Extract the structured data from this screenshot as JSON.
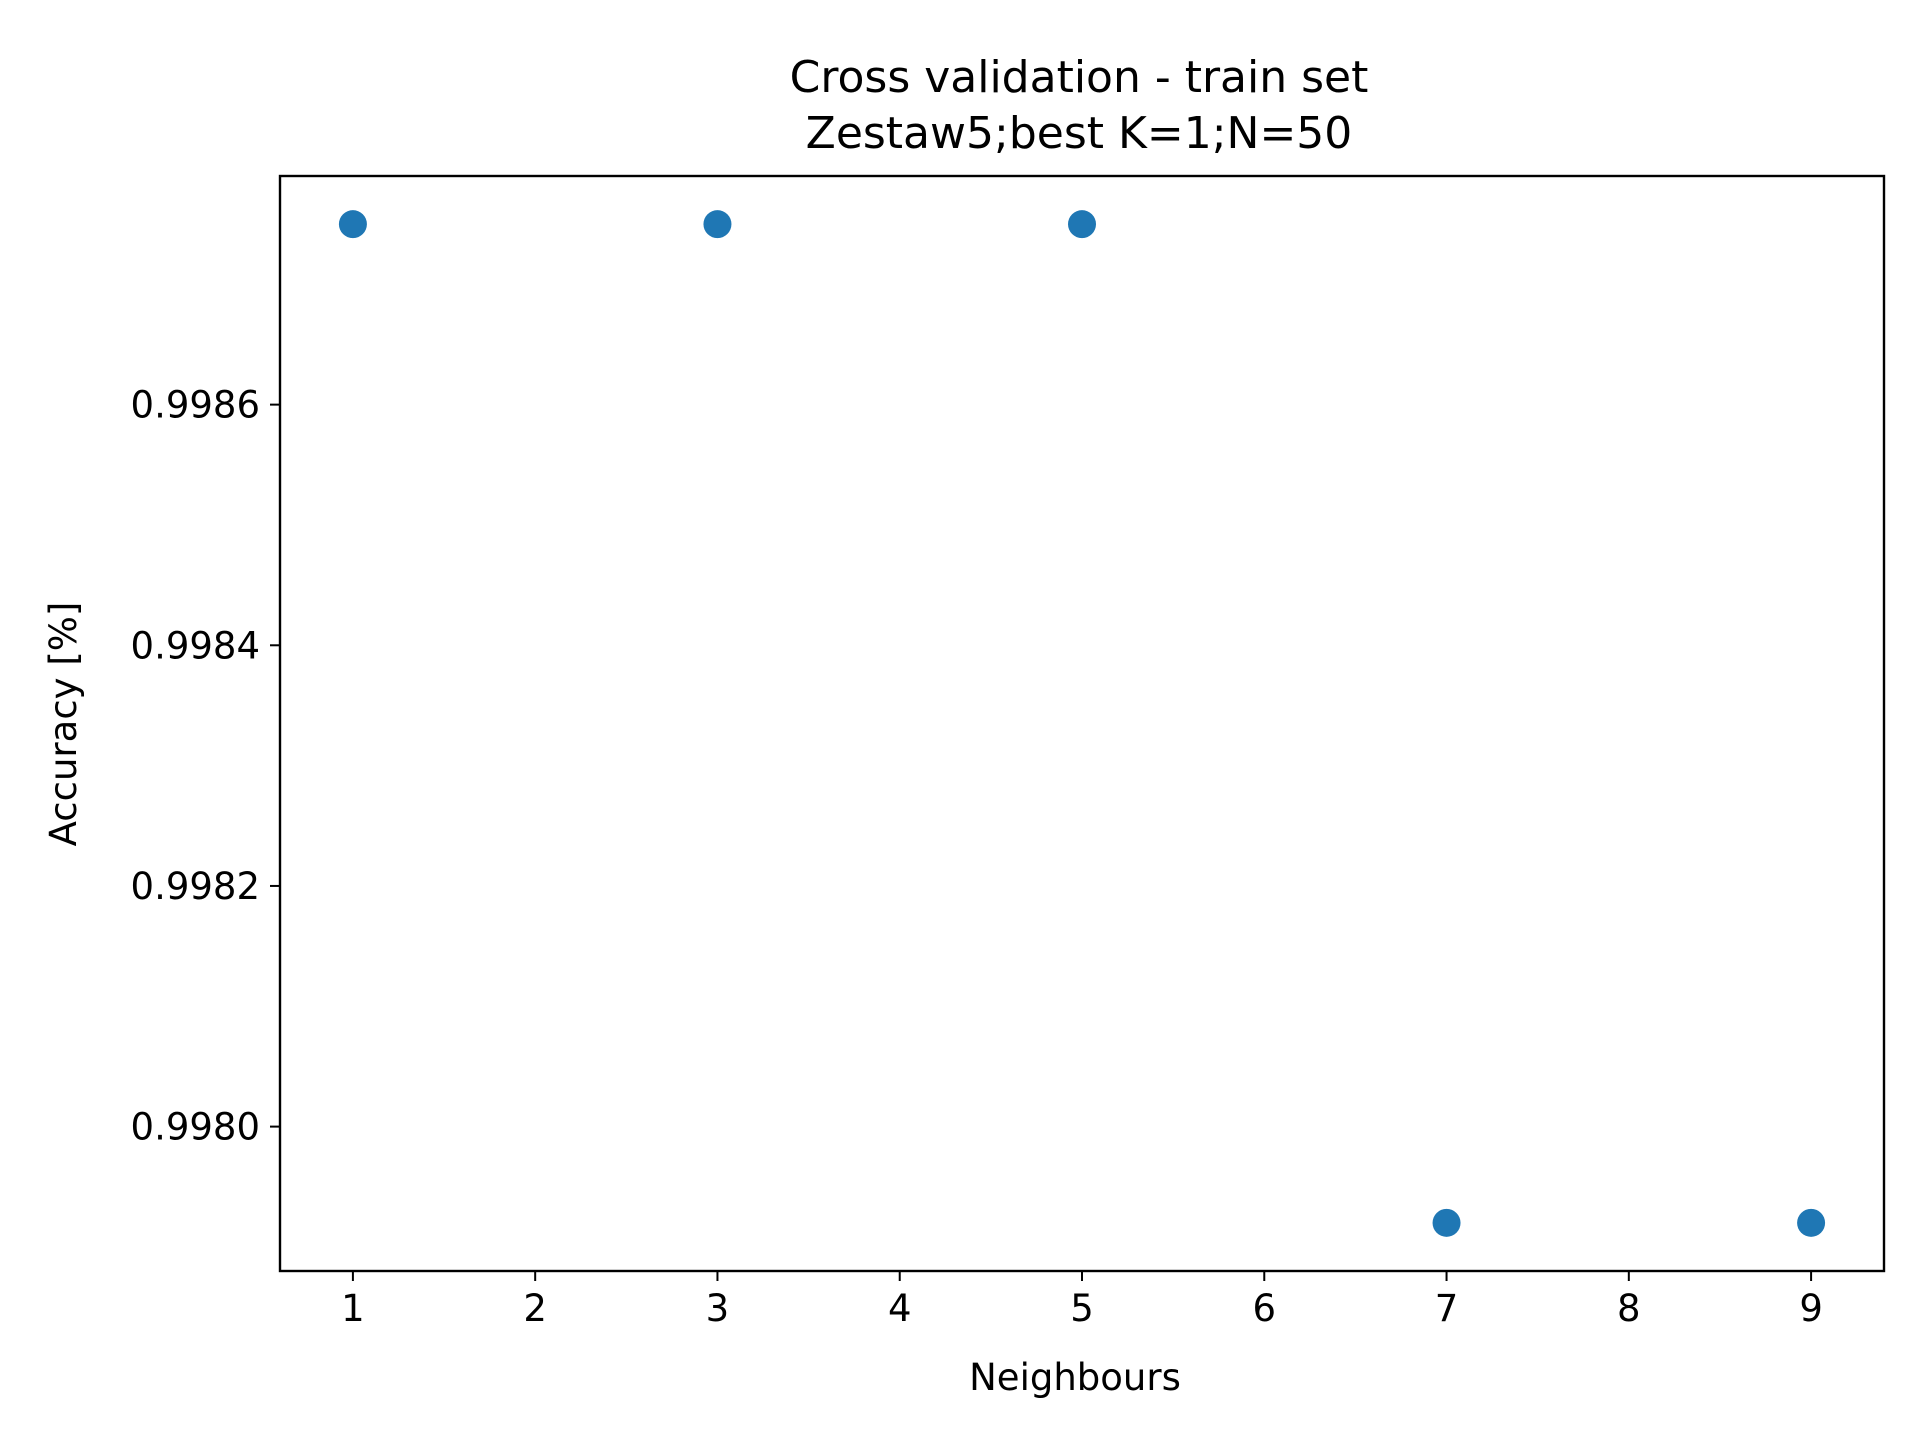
{
  "chart_data": {
    "type": "scatter",
    "title": "Cross validation - train set",
    "subtitle": "Zestaw5;best K=1;N=50",
    "xlabel": "Neighbours",
    "ylabel": "Accuracy [%]",
    "x_ticks": [
      1,
      2,
      3,
      4,
      5,
      6,
      7,
      8,
      9
    ],
    "y_ticks": [
      0.998,
      0.9982,
      0.9984,
      0.9986
    ],
    "y_tick_labels": [
      "0.9980",
      "0.9982",
      "0.9984",
      "0.9986"
    ],
    "xlim": [
      0.6,
      9.4
    ],
    "ylim": [
      0.99788,
      0.99879
    ],
    "grid": false,
    "series": [
      {
        "color": "#1f77b4",
        "x": [
          1,
          3,
          5,
          7,
          9
        ],
        "y": [
          0.99875,
          0.99875,
          0.99875,
          0.99792,
          0.99792
        ]
      }
    ]
  }
}
